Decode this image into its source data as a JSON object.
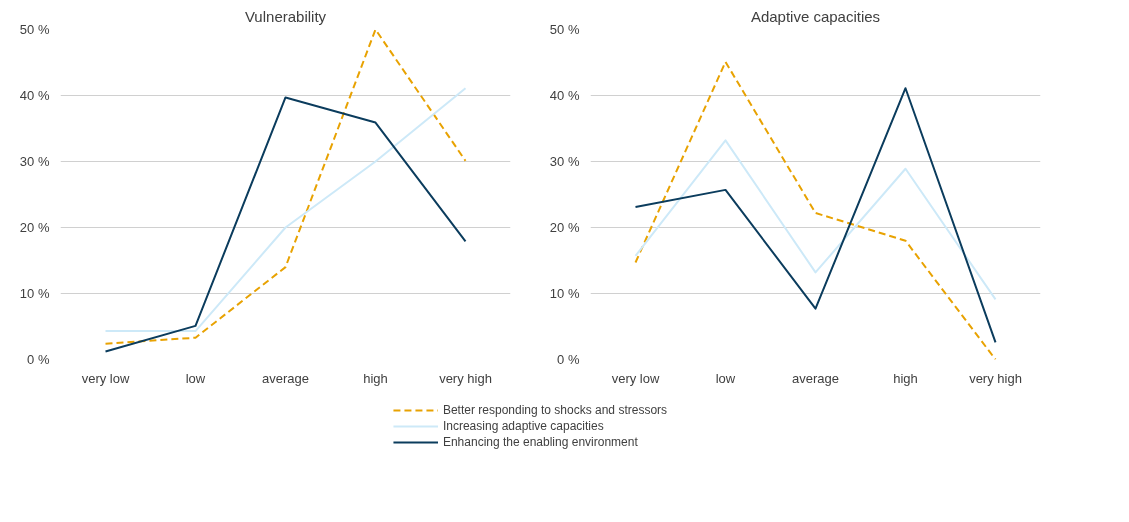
{
  "chart_data": [
    {
      "type": "line",
      "title": "Vulnerability",
      "categories": [
        "very low",
        "low",
        "average",
        "high",
        "very high"
      ],
      "ylim": [
        0,
        50
      ],
      "yticks": [
        {
          "value": 0,
          "label": "0 %"
        },
        {
          "value": 10,
          "label": "10 %"
        },
        {
          "value": 20,
          "label": "20 %"
        },
        {
          "value": 30,
          "label": "30 %"
        },
        {
          "value": 40,
          "label": "40 %"
        },
        {
          "value": 50,
          "label": "50 %"
        }
      ],
      "grid": "y",
      "legend": "bottom",
      "marker": "none",
      "series": [
        {
          "name": "Better responding to shocks and stressors",
          "color": "#e8a202",
          "line_style": "dashed",
          "values": [
            2.4,
            3.3,
            14.0,
            50,
            30.1
          ]
        },
        {
          "name": "Increasing adaptive capacities",
          "color": "#cde9f8",
          "values": [
            4.3,
            4.3,
            20.0,
            30.0,
            41.1
          ]
        },
        {
          "name": "Enhancing the enabling environment",
          "color": "#0b3c5d",
          "values": [
            1.2,
            5.1,
            39.7,
            35.9,
            17.9
          ]
        }
      ]
    },
    {
      "type": "line",
      "title": "Adaptive capacities",
      "categories": [
        "very low",
        "low",
        "average",
        "high",
        "very high"
      ],
      "ylim": [
        0,
        50
      ],
      "yticks": [
        {
          "value": 0,
          "label": "0 %"
        },
        {
          "value": 10,
          "label": "10 %"
        },
        {
          "value": 20,
          "label": "20 %"
        },
        {
          "value": 30,
          "label": "30 %"
        },
        {
          "value": 40,
          "label": "40 %"
        },
        {
          "value": 50,
          "label": "50 %"
        }
      ],
      "grid": "y",
      "marker": "none",
      "series": [
        {
          "color": "#e8a202",
          "line_style": "dashed",
          "values": [
            14.7,
            45.1,
            22.2,
            18.0,
            0
          ]
        },
        {
          "color": "#cde9f8",
          "values": [
            15.7,
            33.2,
            13.2,
            28.9,
            9.1
          ]
        },
        {
          "color": "#0b3c5d",
          "values": [
            23.1,
            25.7,
            7.7,
            41.1,
            2.6
          ]
        }
      ]
    }
  ]
}
